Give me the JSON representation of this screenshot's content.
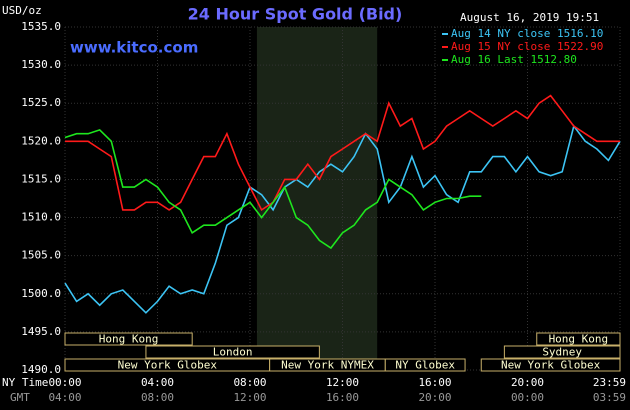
{
  "chart_data": {
    "type": "line",
    "title": "24 Hour Spot Gold (Bid)",
    "date": "August 16, 2019 19:51",
    "unit": "USD/oz",
    "site": "www.kitco.com",
    "x_axis_label": "NY Time",
    "x2_axis_label": "GMT",
    "xlim": [
      0,
      24
    ],
    "ylim": [
      1490,
      1535
    ],
    "yticks": [
      {
        "value": 1490,
        "label": "1490.0"
      },
      {
        "value": 1495,
        "label": "1495.0"
      },
      {
        "value": 1500,
        "label": "1500.0"
      },
      {
        "value": 1505,
        "label": "1505.0"
      },
      {
        "value": 1510,
        "label": "1510.0"
      },
      {
        "value": 1515,
        "label": "1515.0"
      },
      {
        "value": 1520,
        "label": "1520.0"
      },
      {
        "value": 1525,
        "label": "1525.0"
      },
      {
        "value": 1530,
        "label": "1530.0"
      },
      {
        "value": 1535,
        "label": "1535.0"
      }
    ],
    "xticks": [
      {
        "value": 0,
        "label": "00:00"
      },
      {
        "value": 4,
        "label": "04:00"
      },
      {
        "value": 8,
        "label": "08:00"
      },
      {
        "value": 12,
        "label": "12:00"
      },
      {
        "value": 16,
        "label": "16:00"
      },
      {
        "value": 20,
        "label": "20:00"
      },
      {
        "value": 24,
        "label": "23:59"
      }
    ],
    "x2ticks": [
      {
        "value": 0,
        "label": "04:00"
      },
      {
        "value": 4,
        "label": "08:00"
      },
      {
        "value": 8,
        "label": "12:00"
      },
      {
        "value": 12,
        "label": "16:00"
      },
      {
        "value": 16,
        "label": "20:00"
      },
      {
        "value": 20,
        "label": "00:00"
      },
      {
        "value": 24,
        "label": "03:59"
      }
    ],
    "grid": true,
    "shaded_x": [
      8.3,
      13.5
    ],
    "x": [
      0,
      0.5,
      1,
      1.5,
      2,
      2.5,
      3,
      3.5,
      4,
      4.5,
      5,
      5.5,
      6,
      6.5,
      7,
      7.5,
      8,
      8.5,
      9,
      9.5,
      10,
      10.5,
      11,
      11.5,
      12,
      12.5,
      13,
      13.5,
      14,
      14.5,
      15,
      15.5,
      16,
      16.5,
      17,
      17.5,
      18,
      18.5,
      19,
      19.5,
      20,
      20.5,
      21,
      21.5,
      22,
      22.5,
      23,
      23.5,
      24
    ],
    "series": [
      {
        "name": "Aug 14 NY close 1516.10",
        "color": "#3cc4f4",
        "values": [
          1501.4,
          1499,
          1500,
          1498.5,
          1500,
          1500.5,
          1499,
          1497.5,
          1499,
          1501,
          1500,
          1500.5,
          1500,
          1504,
          1509,
          1510,
          1514,
          1513,
          1511,
          1514,
          1515,
          1514,
          1516,
          1517,
          1516,
          1518,
          1521,
          1519,
          1512,
          1514,
          1518,
          1514,
          1515.5,
          1513,
          1512,
          1516,
          1516,
          1518,
          1518,
          1516,
          1518,
          1516,
          1515.5,
          1516,
          1522,
          1520,
          1519,
          1517.5,
          1520
        ]
      },
      {
        "name": "Aug 15 NY close 1522.90",
        "color": "#ff1a1a",
        "values": [
          1520,
          1520,
          1520,
          1519,
          1518,
          1511,
          1511,
          1512,
          1512,
          1511,
          1512,
          1515,
          1518,
          1518,
          1521,
          1517,
          1514,
          1511,
          1512,
          1515,
          1515,
          1517,
          1515,
          1518,
          1519,
          1520,
          1521,
          1520,
          1525,
          1522,
          1523,
          1519,
          1520,
          1522,
          1523,
          1524,
          1523,
          1522,
          1523,
          1524,
          1523,
          1525,
          1526,
          1524,
          1522,
          1521,
          1520,
          1520,
          1520
        ]
      },
      {
        "name": "Aug 16 Last 1512.80",
        "color": "#1ee61e",
        "values": [
          1520.5,
          1521,
          1521,
          1521.5,
          1520,
          1514,
          1514,
          1515,
          1514,
          1512,
          1511,
          1508,
          1509,
          1509,
          1510,
          1511,
          1512,
          1510,
          1512,
          1514,
          1510,
          1509,
          1507,
          1506,
          1508,
          1509,
          1511,
          1512,
          1515,
          1514,
          1513,
          1511,
          1512,
          1512.5,
          1512.5,
          1512.8,
          1512.8,
          null,
          null,
          null,
          null,
          null,
          null,
          null,
          null,
          null,
          null,
          null,
          null
        ]
      }
    ],
    "session_rows": [
      [
        {
          "label": "Hong Kong",
          "start": 0,
          "end": 5.5
        },
        {
          "label": "Hong Kong",
          "start": 20.4,
          "end": 24
        }
      ],
      [
        {
          "label": "London",
          "start": 3.5,
          "end": 11
        },
        {
          "label": "Sydney",
          "start": 19,
          "end": 24
        }
      ],
      [
        {
          "label": "New York Globex",
          "start": 0,
          "end": 8.85
        },
        {
          "label": "New York NYMEX",
          "start": 8.85,
          "end": 13.85
        },
        {
          "label": "NY Globex",
          "start": 13.85,
          "end": 17.3
        },
        {
          "label": "New York Globex",
          "start": 18,
          "end": 24
        }
      ]
    ]
  }
}
